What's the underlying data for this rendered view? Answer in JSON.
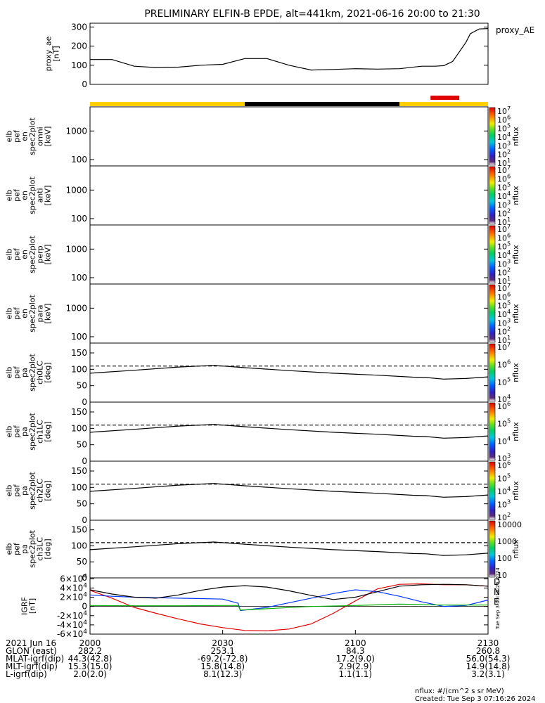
{
  "title": "PRELIMINARY ELFIN-B EPDE, alt=441km, 2021-06-16 20:00 to 21:30",
  "colors": {
    "yellow": "#ffd000",
    "black": "#000000",
    "red": "#e00000",
    "blue": "#0033ff",
    "green": "#00b000"
  },
  "orbit_bar": [
    {
      "t0": 0,
      "t1": 35,
      "color": "yellow"
    },
    {
      "t0": 35,
      "t1": 70,
      "color": "black"
    },
    {
      "t0": 70,
      "t1": 90,
      "color": "yellow"
    }
  ],
  "science_bar": {
    "t0": 77,
    "t1": 83.5,
    "color": "red"
  },
  "chart_data": [
    {
      "type": "line",
      "id": "ae",
      "ylabel": "proxy_ae\n[nT]",
      "legend": "proxy_AE",
      "ylim": [
        0,
        320
      ],
      "yticks": [
        "0",
        "100",
        "200",
        "300"
      ],
      "x": [
        0,
        5,
        10,
        15,
        20,
        25,
        30,
        35,
        40,
        45,
        50,
        55,
        60,
        65,
        70,
        75,
        78,
        80,
        82,
        85,
        86,
        88,
        90
      ],
      "y": [
        130,
        130,
        95,
        88,
        90,
        100,
        105,
        135,
        135,
        100,
        75,
        78,
        82,
        80,
        82,
        95,
        95,
        98,
        120,
        220,
        265,
        290,
        292
      ]
    },
    {
      "type": "heatmap",
      "id": "omni",
      "ylabel": "elb\npef\nen\nspec2plot\nomni\n[keV]",
      "log": true,
      "ylim": [
        60,
        7000
      ],
      "yticks": [
        "100",
        "1000"
      ],
      "cbar": {
        "label": "nflux",
        "min": 1,
        "max": 7,
        "ticks": [
          "10^1",
          "10^2",
          "10^3",
          "10^4",
          "10^5",
          "10^6",
          "10^7"
        ]
      }
    },
    {
      "type": "heatmap",
      "id": "anti",
      "ylabel": "elb\npef\nen\nspec2plot\nanti\n[keV]",
      "log": true,
      "ylim": [
        60,
        7000
      ],
      "yticks": [
        "100",
        "1000"
      ],
      "cbar": {
        "label": "nflux",
        "min": 1,
        "max": 7,
        "ticks": [
          "10^1",
          "10^2",
          "10^3",
          "10^4",
          "10^5",
          "10^6",
          "10^7"
        ]
      }
    },
    {
      "type": "heatmap",
      "id": "perp",
      "ylabel": "elb\npef\nen\nspec2plot\nperp\n[keV]",
      "log": true,
      "ylim": [
        60,
        7000
      ],
      "yticks": [
        "100",
        "1000"
      ],
      "cbar": {
        "label": "nflux",
        "min": 1,
        "max": 7,
        "ticks": [
          "10^1",
          "10^2",
          "10^3",
          "10^4",
          "10^5",
          "10^6",
          "10^7"
        ]
      }
    },
    {
      "type": "heatmap",
      "id": "para",
      "ylabel": "elb\npef\nen\nspec2plot\npara\n[keV]",
      "log": true,
      "ylim": [
        60,
        7000
      ],
      "yticks": [
        "100",
        "1000"
      ],
      "cbar": {
        "label": "nflux",
        "min": 1,
        "max": 7,
        "ticks": [
          "10^1",
          "10^2",
          "10^3",
          "10^4",
          "10^5",
          "10^6",
          "10^7"
        ]
      }
    },
    {
      "type": "heatmap",
      "id": "ch0",
      "ylabel": "elb\npef\npa\nspec2plot\nch0LC\n[deg]",
      "ylim": [
        0,
        180
      ],
      "yticks": [
        "0",
        "50",
        "100",
        "150"
      ],
      "cbar": {
        "label": "nflux",
        "min": 3.5,
        "max": 7,
        "ticks": [
          "10^4",
          "10^5",
          "10^6",
          "10^7"
        ]
      }
    },
    {
      "type": "heatmap",
      "id": "ch1",
      "ylabel": "elb\npef\npa\nspec2plot\nch1LC\n[deg]",
      "ylim": [
        0,
        180
      ],
      "yticks": [
        "0",
        "50",
        "100",
        "150"
      ],
      "cbar": {
        "label": "nflux",
        "min": 2.5,
        "max": 6.5,
        "ticks": [
          "10^3",
          "10^4",
          "10^5",
          "10^6"
        ]
      }
    },
    {
      "type": "heatmap",
      "id": "ch2",
      "ylabel": "elb\npef\npa\nspec2plot\nch2LC\n[deg]",
      "ylim": [
        0,
        180
      ],
      "yticks": [
        "0",
        "50",
        "100",
        "150"
      ],
      "cbar": {
        "label": "nflux",
        "min": 1.7,
        "max": 6.5,
        "ticks": [
          "10^2",
          "10^3",
          "10^4",
          "10^5",
          "10^6"
        ]
      }
    },
    {
      "type": "heatmap",
      "id": "ch3",
      "ylabel": "elb\npef\npa\nspec2plot\nch3LC\n[deg]",
      "ylim": [
        0,
        180
      ],
      "yticks": [
        "0",
        "50",
        "100",
        "150"
      ],
      "cbar": {
        "label": "nflux",
        "min": 1,
        "max": 4.3,
        "ticks": [
          "10",
          "100",
          "1000",
          "10000"
        ]
      }
    },
    {
      "type": "line",
      "id": "igrf",
      "ylabel": "IGRF\n[nT]",
      "ylim": [
        -60000,
        62000
      ],
      "yticks": [
        "-6×10^4",
        "-4×10^4",
        "-2×10^4",
        "0",
        "2×10^4",
        "4×10^4",
        "6×10^4"
      ],
      "series": [
        {
          "name": "D",
          "color": "red",
          "x": [
            0,
            5,
            10,
            15,
            20,
            25,
            30,
            35,
            40,
            45,
            50,
            55,
            60,
            65,
            70,
            75,
            80,
            85,
            90
          ],
          "y": [
            35000,
            18000,
            -2000,
            -15000,
            -27000,
            -38000,
            -46000,
            -52000,
            -53000,
            -49000,
            -38000,
            -15000,
            12000,
            38000,
            48000,
            49000,
            47000,
            47000,
            44000
          ]
        },
        {
          "name": "N",
          "color": "blue",
          "x": [
            0,
            5,
            10,
            15,
            20,
            25,
            30,
            33.5,
            34,
            40,
            45,
            50,
            55,
            60,
            65,
            70,
            75,
            80,
            85,
            90
          ],
          "y": [
            25000,
            22000,
            20000,
            19000,
            18000,
            17000,
            16000,
            7000,
            -9000,
            -2000,
            8000,
            18000,
            28000,
            36000,
            32000,
            22000,
            10000,
            0,
            2000,
            14000
          ]
        },
        {
          "name": "E",
          "color": "green",
          "x": [
            0,
            10,
            20,
            30,
            33.5,
            34,
            40,
            50,
            60,
            70,
            80,
            90
          ],
          "y": [
            2000,
            1500,
            1500,
            2000,
            2000,
            -8000,
            -5000,
            0,
            2000,
            5000,
            3000,
            3000
          ]
        },
        {
          "name": "",
          "color": "black",
          "x": [
            0,
            5,
            10,
            15,
            20,
            25,
            30,
            35,
            40,
            45,
            50,
            55,
            60,
            65,
            70,
            75,
            80,
            85,
            90
          ],
          "y": [
            36000,
            27000,
            20000,
            18000,
            25000,
            35000,
            42000,
            45000,
            42000,
            34000,
            24000,
            15000,
            20000,
            32000,
            44000,
            47000,
            48000,
            47000,
            44000
          ]
        }
      ]
    }
  ],
  "lc_lines": {
    "dashed": 110,
    "x": [
      0,
      10,
      20,
      28,
      35,
      45,
      55,
      65,
      73,
      76,
      80,
      85,
      90
    ],
    "solid": [
      88,
      97,
      107,
      112,
      105,
      96,
      88,
      82,
      76,
      75,
      70,
      72,
      77
    ]
  },
  "xaxis": {
    "tick_positions": [
      0,
      30,
      60,
      90
    ],
    "tick_labels": [
      "2000",
      "2030",
      "2100",
      "2130"
    ]
  },
  "footer": {
    "rows": [
      {
        "label": "2021 Jun 16",
        "vals": [
          "2000",
          "2030",
          "2100",
          "2130"
        ]
      },
      {
        "label": "GLON (east)",
        "vals": [
          "282.2",
          "253.1",
          "84.3",
          "260.8"
        ]
      },
      {
        "label": "MLAT-igrf(dip)",
        "vals": [
          "44.3(42.8)",
          "-69.2(-72.8)",
          "17.2(9.0)",
          "56.0(54.3)"
        ]
      },
      {
        "label": "MLT-igrf(dip)",
        "vals": [
          "15.3(15.0)",
          "15.8(14.8)",
          "2.9(2.9)",
          "14.9(14.8)"
        ]
      },
      {
        "label": "L-igrf(dip)",
        "vals": [
          "2.0(2.0)",
          "8.1(12.3)",
          "1.1(1.1)",
          "3.2(3.1)"
        ]
      }
    ],
    "units_note": "nflux: #/(cm^2 s sr MeV)",
    "created": "Created: Tue Sep  3 07:16:26 2024",
    "side_stamp": "Tue Sep  3 00:16:26 2024"
  }
}
